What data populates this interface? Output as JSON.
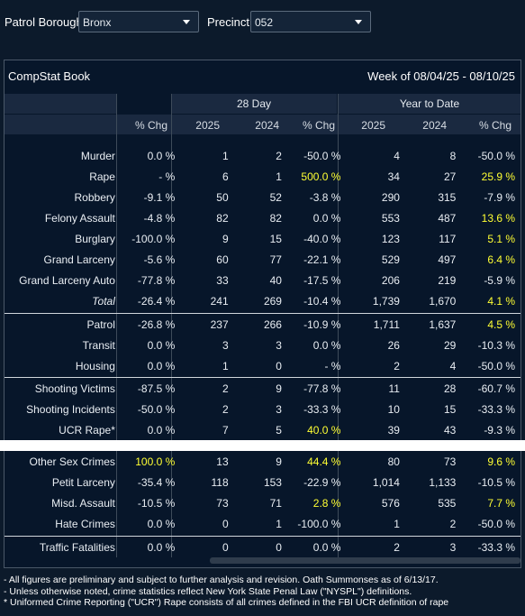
{
  "filters": {
    "borough_label": "Patrol Borough:",
    "borough_value": "Bronx",
    "precinct_label": "Precinct:",
    "precinct_value": "052"
  },
  "panel": {
    "title": "CompStat Book",
    "week": "Week of 08/04/25 - 08/10/25",
    "group_28": "28 Day",
    "group_ytd": "Year to Date",
    "headers": [
      "% Chg",
      "2025",
      "2024",
      "% Chg",
      "2025",
      "2024",
      "% Chg"
    ]
  },
  "rows_top": [
    {
      "label": "Murder",
      "wk": "0.0 %",
      "d25": "1",
      "d24": "2",
      "dchg": "-50.0 %",
      "y25": "4",
      "y24": "8",
      "ychg": "-50.0 %"
    },
    {
      "label": "Rape",
      "wk": "- %",
      "d25": "6",
      "d24": "1",
      "dchg": "500.0 %",
      "y25": "34",
      "y24": "27",
      "ychg": "25.9 %"
    },
    {
      "label": "Robbery",
      "wk": "-9.1 %",
      "d25": "50",
      "d24": "52",
      "dchg": "-3.8 %",
      "y25": "290",
      "y24": "315",
      "ychg": "-7.9 %"
    },
    {
      "label": "Felony Assault",
      "wk": "-4.8 %",
      "d25": "82",
      "d24": "82",
      "dchg": "0.0 %",
      "y25": "553",
      "y24": "487",
      "ychg": "13.6 %"
    },
    {
      "label": "Burglary",
      "wk": "-100.0 %",
      "d25": "9",
      "d24": "15",
      "dchg": "-40.0 %",
      "y25": "123",
      "y24": "117",
      "ychg": "5.1 %"
    },
    {
      "label": "Grand Larceny",
      "wk": "-5.6 %",
      "d25": "60",
      "d24": "77",
      "dchg": "-22.1 %",
      "y25": "529",
      "y24": "497",
      "ychg": "6.4 %"
    },
    {
      "label": "Grand Larceny Auto",
      "wk": "-77.8 %",
      "d25": "33",
      "d24": "40",
      "dchg": "-17.5 %",
      "y25": "206",
      "y24": "219",
      "ychg": "-5.9 %"
    },
    {
      "label": "Total",
      "wk": "-26.4 %",
      "d25": "241",
      "d24": "269",
      "dchg": "-10.4 %",
      "y25": "1,739",
      "y24": "1,670",
      "ychg": "4.1 %"
    }
  ],
  "rows_transit": [
    {
      "label": "Patrol",
      "wk": "-26.8 %",
      "d25": "237",
      "d24": "266",
      "dchg": "-10.9 %",
      "y25": "1,711",
      "y24": "1,637",
      "ychg": "4.5 %"
    },
    {
      "label": "Transit",
      "wk": "0.0 %",
      "d25": "3",
      "d24": "3",
      "dchg": "0.0 %",
      "y25": "26",
      "y24": "29",
      "ychg": "-10.3 %"
    },
    {
      "label": "Housing",
      "wk": "0.0 %",
      "d25": "1",
      "d24": "0",
      "dchg": "- %",
      "y25": "2",
      "y24": "4",
      "ychg": "-50.0 %"
    }
  ],
  "rows_shoot": [
    {
      "label": "Shooting Victims",
      "wk": "-87.5 %",
      "d25": "2",
      "d24": "9",
      "dchg": "-77.8 %",
      "y25": "11",
      "y24": "28",
      "ychg": "-60.7 %"
    },
    {
      "label": "Shooting Incidents",
      "wk": "-50.0 %",
      "d25": "2",
      "d24": "3",
      "dchg": "-33.3 %",
      "y25": "10",
      "y24": "15",
      "ychg": "-33.3 %"
    },
    {
      "label": "UCR Rape*",
      "wk": "0.0 %",
      "d25": "7",
      "d24": "5",
      "dchg": "40.0 %",
      "y25": "39",
      "y24": "43",
      "ychg": "-9.3 %"
    }
  ],
  "rows_other": [
    {
      "label": "Other Sex Crimes",
      "wk": "100.0 %",
      "d25": "13",
      "d24": "9",
      "dchg": "44.4 %",
      "y25": "80",
      "y24": "73",
      "ychg": "9.6 %"
    },
    {
      "label": "Petit Larceny",
      "wk": "-35.4 %",
      "d25": "118",
      "d24": "153",
      "dchg": "-22.9 %",
      "y25": "1,014",
      "y24": "1,133",
      "ychg": "-10.5 %"
    },
    {
      "label": "Misd. Assault",
      "wk": "-10.5 %",
      "d25": "73",
      "d24": "71",
      "dchg": "2.8 %",
      "y25": "576",
      "y24": "535",
      "ychg": "7.7 %"
    },
    {
      "label": "Hate Crimes",
      "wk": "0.0 %",
      "d25": "0",
      "d24": "1",
      "dchg": "-100.0 %",
      "y25": "1",
      "y24": "2",
      "ychg": "-50.0 %"
    }
  ],
  "rows_traffic": [
    {
      "label": "Traffic Fatalities",
      "wk": "0.0 %",
      "d25": "0",
      "d24": "0",
      "dchg": "0.0 %",
      "y25": "2",
      "y24": "3",
      "ychg": "-33.3 %"
    }
  ],
  "footnotes": [
    "- All figures are preliminary and subject to further analysis and revision. Oath Summonses as of 6/13/17.",
    "- Unless otherwise noted, crime statistics reflect New York State Penal Law (\"NYSPL\") definitions.",
    "* Uniformed Crime Reporting (\"UCR\") Rape consists of all crimes defined in the FBI UCR definition of rape"
  ],
  "colors": {
    "background": "#0c1a2b",
    "panel": "#07162a",
    "header": "#1a2940",
    "highlight": "#ffff33"
  }
}
